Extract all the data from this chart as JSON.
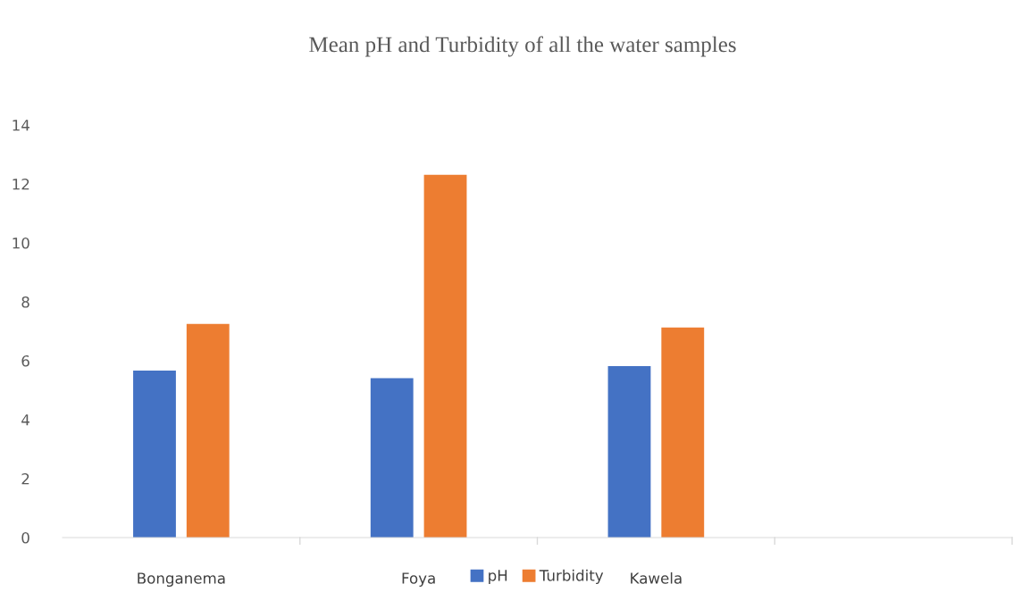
{
  "chart_data": {
    "type": "bar",
    "title": "Mean pH and Turbidity of all the water samples",
    "categories": [
      "Bonganema",
      "Foya",
      "Kawela",
      null
    ],
    "series": [
      {
        "name": "pH",
        "color": "#4472c4",
        "values": [
          5.67,
          5.41,
          5.82,
          null
        ]
      },
      {
        "name": "Turbidity",
        "color": "#ed7d31",
        "values": [
          7.25,
          12.31,
          7.13,
          null
        ]
      }
    ],
    "ylim": [
      0,
      14
    ],
    "yticks": [
      0,
      2,
      4,
      6,
      8,
      10,
      12,
      14
    ],
    "grid": false,
    "legend": "bottom"
  }
}
